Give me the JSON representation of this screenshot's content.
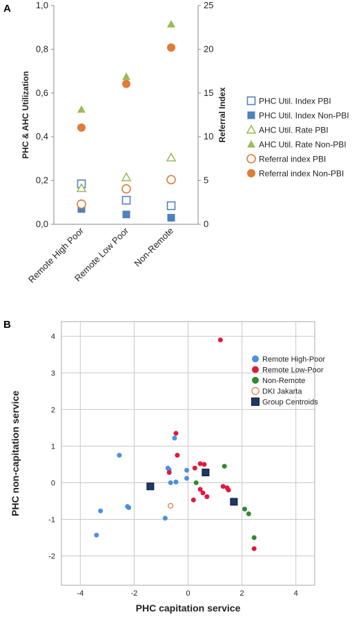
{
  "chart_data": [
    {
      "panel": "A",
      "type": "scatter",
      "categories": [
        "Remote High Poor",
        "Remote Low Poor",
        "Non-Remote"
      ],
      "ylabel": "PHC & AHC Utilization",
      "y2label": "Referral Index",
      "ylim": [
        0,
        1
      ],
      "y2lim": [
        0,
        25
      ],
      "yticks": [
        "0,0",
        "0,2",
        "0,4",
        "0,6",
        "0,8",
        "1,0"
      ],
      "y2ticks": [
        "0",
        "5",
        "10",
        "15",
        "20",
        "25"
      ],
      "legend_position": "right",
      "series": [
        {
          "name": "PHC Util. Index PBI",
          "axis": "left",
          "marker": "square-open",
          "color": "#4f81bd",
          "values": [
            0.185,
            0.11,
            0.085
          ]
        },
        {
          "name": "PHC Util. Index Non-PBI",
          "axis": "left",
          "marker": "square-filled",
          "color": "#4f81bd",
          "values": [
            0.07,
            0.045,
            0.03
          ]
        },
        {
          "name": "AHC Util. Rate PBI",
          "axis": "left",
          "marker": "triangle-open",
          "color": "#9bbb59",
          "values": [
            0.165,
            0.215,
            0.305
          ]
        },
        {
          "name": "AHC Util. Rate Non-PBI",
          "axis": "left",
          "marker": "triangle-filled",
          "color": "#9bbb59",
          "values": [
            0.525,
            0.675,
            0.915
          ]
        },
        {
          "name": "Referral index PBI",
          "axis": "right",
          "marker": "circle-open",
          "color": "#e07b39",
          "values": [
            2.3,
            4.05,
            5.1
          ]
        },
        {
          "name": "Referral index Non-PBI",
          "axis": "right",
          "marker": "circle-filled",
          "color": "#e07b39",
          "values": [
            11.05,
            16.05,
            20.2
          ]
        }
      ]
    },
    {
      "panel": "B",
      "type": "scatter",
      "xlabel": "PHC capitation service",
      "ylabel": "PHC non-capitation service",
      "xlim": [
        -4.7,
        4.7
      ],
      "ylim": [
        -2.8,
        4.4
      ],
      "xticks": [
        -4,
        -2,
        0,
        2,
        4
      ],
      "yticks": [
        -2,
        -1,
        0,
        1,
        2,
        3,
        4
      ],
      "grid": true,
      "legend_position": "top-right",
      "series": [
        {
          "name": "Remote High-Poor",
          "marker": "circle-filled",
          "color": "#4a90e2",
          "points": [
            [
              -3.4,
              -1.43
            ],
            [
              -3.25,
              -0.77
            ],
            [
              -2.55,
              0.75
            ],
            [
              -2.25,
              -0.65
            ],
            [
              -2.2,
              -0.68
            ],
            [
              -0.85,
              -0.97
            ],
            [
              -0.75,
              0.4
            ],
            [
              -0.7,
              0.35
            ],
            [
              -0.65,
              0.0
            ],
            [
              -0.5,
              1.22
            ],
            [
              -0.45,
              0.02
            ],
            [
              -0.05,
              0.34
            ],
            [
              -0.05,
              0.12
            ]
          ]
        },
        {
          "name": "Remote Low-Poor",
          "marker": "circle-filled",
          "color": "#e0193c",
          "points": [
            [
              1.2,
              3.9
            ],
            [
              -0.45,
              1.35
            ],
            [
              -0.4,
              0.75
            ],
            [
              -0.7,
              0.28
            ],
            [
              0.25,
              0.4
            ],
            [
              0.45,
              0.52
            ],
            [
              0.6,
              0.5
            ],
            [
              0.2,
              -0.47
            ],
            [
              0.45,
              -0.18
            ],
            [
              0.55,
              -0.28
            ],
            [
              0.7,
              -0.38
            ],
            [
              1.3,
              -0.1
            ],
            [
              1.45,
              -0.14
            ],
            [
              1.5,
              -0.2
            ],
            [
              2.45,
              -1.8
            ]
          ]
        },
        {
          "name": "Non-Remote",
          "marker": "circle-filled",
          "color": "#2e8b2e",
          "points": [
            [
              1.35,
              0.45
            ],
            [
              0.3,
              0.0
            ],
            [
              2.1,
              -0.72
            ],
            [
              2.25,
              -0.85
            ],
            [
              2.45,
              -1.5
            ]
          ]
        },
        {
          "name": "DKI Jakarta",
          "marker": "circle-open",
          "color": "#e07b39",
          "points": [
            [
              -0.65,
              -0.63
            ]
          ]
        },
        {
          "name": "Group Centroids",
          "marker": "square-filled",
          "color": "#1f3864",
          "points": [
            [
              -1.4,
              -0.1
            ],
            [
              0.65,
              0.28
            ],
            [
              1.7,
              -0.52
            ]
          ]
        }
      ]
    }
  ],
  "labels": {
    "panelA": "A",
    "panelB": "B"
  }
}
